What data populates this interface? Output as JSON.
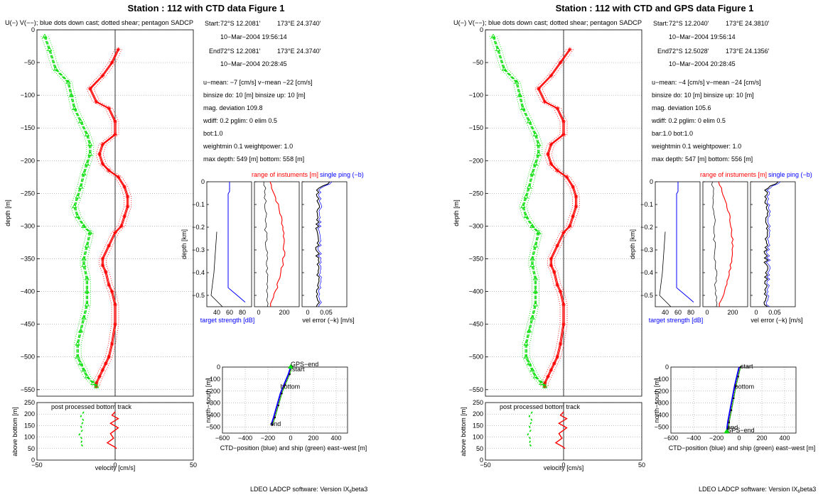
{
  "figures": [
    {
      "title": "Station : 112 with CTD data  Figure 1",
      "legend_text": "U(−) V(−−); blue dots down cast; dotted shear; pentagon SADCP",
      "start": {
        "label": "Start:",
        "lat": "72°S 12.2081'",
        "lon": "173°E 24.3740'",
        "time": "10−Mar−2004 19:56:14"
      },
      "end": {
        "label": "End:",
        "lat": "72°S 12.2081'",
        "lon": "173°E 24.3740'",
        "time": "10−Mar−2004 20:28:45"
      },
      "info_lines": [
        "u−mean:  −7 [cm/s]   v−mean −22 [cm/s]",
        "binsize do: 10 [m]  binsize up:  10 [m]",
        "mag. deviation 109.8",
        "wdiff: 0.2  pglim:  0  elim 0.5",
        "  bot:1.0",
        "weightmin 0.1  weightpower: 1.0",
        "max depth: 549 [m]   bottom: 558 [m]"
      ],
      "nav_labels": [
        "GPS−end",
        "start",
        "bottom",
        "end"
      ]
    },
    {
      "title": "Station : 112 with CTD and GPS data  Figure 1",
      "legend_text": "U(−) V(−−); blue dots down cast; dotted shear; pentagon SADCP",
      "start": {
        "label": "Start:",
        "lat": "72°S 12.2040'",
        "lon": "173°E 24.3810'",
        "time": "10−Mar−2004 19:56:14"
      },
      "end": {
        "label": "End:",
        "lat": "72°S 12.5028'",
        "lon": "173°E 24.1356'",
        "time": "10−Mar−2004 20:28:45"
      },
      "info_lines": [
        "u−mean:  −4 [cm/s]   v−mean −24 [cm/s]",
        "binsize do: 10 [m]  binsize up:  10 [m]",
        "mag. deviation 105.6",
        "wdiff: 0.2  pglim:  0  elim 0.5",
        "  bar:1.0 bot:1.0",
        "weightmin 0.1  weightpower: 1.0",
        "max depth: 547 [m]   bottom: 556 [m]"
      ],
      "nav_labels": [
        "start",
        "bottom",
        "end",
        "GPS−end"
      ]
    }
  ],
  "footer": "LDEO LADCP software: Version IX",
  "footer_sub": "6",
  "footer_tail": "beta3",
  "colors": {
    "u": "#ff0000",
    "v": "#00dd00",
    "ctd": "#0000ff",
    "black": "#000000"
  },
  "chart_data": [
    {
      "type": "line",
      "title": "",
      "xlabel": "velocity [cm/s]",
      "ylabel": "depth [m]",
      "xlim": [
        -50,
        50
      ],
      "ylim": [
        -560,
        0
      ],
      "xticks": [
        -50,
        0,
        50
      ],
      "yticks": [
        0,
        -50,
        -100,
        -150,
        -200,
        -250,
        -300,
        -350,
        -400,
        -450,
        -500,
        -550
      ],
      "grid": true,
      "series": [
        {
          "name": "U",
          "color": "#ff0000",
          "x": [
            2,
            -2,
            -8,
            -16,
            -12,
            -4,
            0,
            0,
            -8,
            -10,
            -8,
            -4,
            2,
            6,
            8,
            8,
            6,
            4,
            0,
            -4,
            -8,
            -8,
            -6,
            -4,
            -2,
            0,
            0,
            -2,
            -4,
            -6,
            -8,
            -10,
            -12,
            -12
          ],
          "y": [
            -30,
            -50,
            -70,
            -90,
            -110,
            -120,
            -140,
            -160,
            -175,
            -190,
            -205,
            -215,
            -225,
            -240,
            -255,
            -270,
            -285,
            -300,
            -310,
            -330,
            -350,
            -360,
            -370,
            -390,
            -400,
            -420,
            -450,
            -480,
            -500,
            -510,
            -520,
            -530,
            -540,
            -545
          ]
        },
        {
          "name": "V",
          "color": "#00dd00",
          "x": [
            -45,
            -42,
            -38,
            -30,
            -28,
            -26,
            -22,
            -18,
            -16,
            -16,
            -18,
            -20,
            -22,
            -24,
            -26,
            -24,
            -20,
            -16,
            -18,
            -20,
            -20,
            -18,
            -18,
            -18,
            -20,
            -22,
            -24,
            -24,
            -22,
            -20,
            -18,
            -14,
            -12
          ],
          "y": [
            -10,
            -30,
            -60,
            -80,
            -100,
            -120,
            -140,
            -160,
            -175,
            -190,
            -205,
            -220,
            -240,
            -255,
            -270,
            -285,
            -300,
            -310,
            -330,
            -350,
            -360,
            -380,
            -400,
            -420,
            -440,
            -460,
            -480,
            -500,
            -510,
            -520,
            -530,
            -540,
            -545
          ]
        }
      ]
    },
    {
      "type": "line",
      "title": "",
      "xlabel": "velocity [cm/s]",
      "ylabel": "depth [m]",
      "xlim": [
        -50,
        50
      ],
      "ylim": [
        -560,
        0
      ],
      "xticks": [
        -50,
        0,
        50
      ],
      "yticks": [
        0,
        -50,
        -100,
        -150,
        -200,
        -250,
        -300,
        -350,
        -400,
        -450,
        -500,
        -550
      ],
      "grid": true,
      "series": [
        {
          "name": "U",
          "color": "#ff0000",
          "x": [
            4,
            -2,
            -8,
            -16,
            -12,
            -4,
            0,
            0,
            -8,
            -10,
            -8,
            -4,
            2,
            6,
            8,
            8,
            6,
            4,
            0,
            -4,
            -8,
            -8,
            -6,
            -4,
            -2,
            0,
            0,
            -2,
            -4,
            -6,
            -8,
            -10,
            -12,
            -12
          ],
          "y": [
            -30,
            -50,
            -70,
            -90,
            -110,
            -120,
            -140,
            -160,
            -175,
            -190,
            -205,
            -215,
            -225,
            -240,
            -255,
            -270,
            -285,
            -300,
            -310,
            -330,
            -350,
            -360,
            -370,
            -390,
            -400,
            -420,
            -450,
            -480,
            -500,
            -510,
            -520,
            -530,
            -540,
            -545
          ]
        },
        {
          "name": "V",
          "color": "#00dd00",
          "x": [
            -45,
            -42,
            -38,
            -30,
            -28,
            -26,
            -22,
            -18,
            -16,
            -16,
            -18,
            -20,
            -22,
            -24,
            -26,
            -24,
            -20,
            -16,
            -18,
            -20,
            -20,
            -18,
            -18,
            -18,
            -20,
            -22,
            -24,
            -24,
            -22,
            -20,
            -18,
            -14,
            -12
          ],
          "y": [
            -10,
            -30,
            -60,
            -80,
            -100,
            -120,
            -140,
            -160,
            -175,
            -190,
            -205,
            -220,
            -240,
            -255,
            -270,
            -285,
            -300,
            -310,
            -330,
            -350,
            -360,
            -380,
            -400,
            -420,
            -440,
            -460,
            -480,
            -500,
            -510,
            -520,
            -530,
            -540,
            -545
          ]
        }
      ]
    }
  ],
  "bottom_track": {
    "label": "post processed bottom track",
    "ylabel": "above bottom [m]",
    "yticks": [
      250,
      200,
      150,
      100,
      50,
      0
    ],
    "xticks": [
      -50,
      0,
      50
    ]
  },
  "small_panels": {
    "top_label_red": "range of instuments [m]",
    "top_label_blue": "single ping (−b)",
    "ylabel": "depth [km]",
    "yticks": [
      "0",
      "−0.1",
      "−0.2",
      "−0.3",
      "−0.4",
      "−0.5"
    ],
    "p1_xticks": [
      "40",
      "60",
      "80"
    ],
    "p1_xlabel": "target strength [dB]",
    "p2_xticks": [
      "0",
      "200"
    ],
    "p3_xticks": [
      "0",
      "0.05"
    ],
    "p3_xlabel": "vel error (−k) [m/s]"
  },
  "nav_panel": {
    "xlabel": "CTD−position (blue) and ship (green) east−west [m]",
    "ylabel": "north−south [m]",
    "xticks": [
      "−600",
      "−400",
      "−200",
      "0",
      "200",
      "400"
    ],
    "yticks": [
      "0",
      "−100",
      "−200",
      "−300",
      "−400",
      "−500"
    ]
  }
}
